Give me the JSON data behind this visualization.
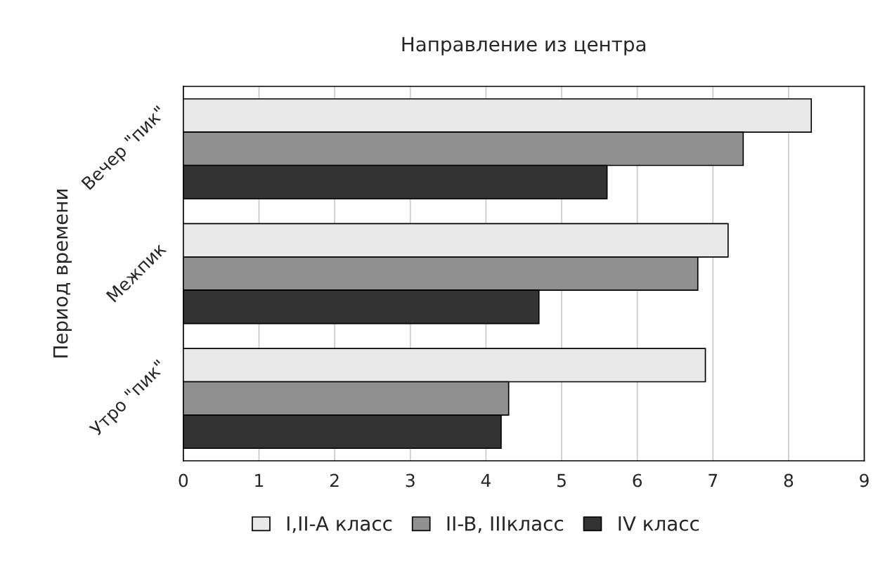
{
  "chart_data": {
    "type": "bar",
    "orientation": "horizontal",
    "title": "Направление из центра",
    "ylabel": "Период времени",
    "categories": [
      "Вечер \"пик\"",
      "Межпик",
      "Утро \"пик\""
    ],
    "series": [
      {
        "name": "I,II-A класс",
        "color": "#e8e8e8",
        "values": [
          8.3,
          7.2,
          6.9
        ]
      },
      {
        "name": "II-B, IIIкласс",
        "color": "#909090",
        "values": [
          7.4,
          6.8,
          4.3
        ]
      },
      {
        "name": "IV класс",
        "color": "#333333",
        "values": [
          5.6,
          4.7,
          4.2
        ]
      }
    ],
    "xlim": [
      0,
      9
    ],
    "xticks": [
      0,
      1,
      2,
      3,
      4,
      5,
      6,
      7,
      8,
      9
    ],
    "grid": "x",
    "legend": "bottom"
  }
}
